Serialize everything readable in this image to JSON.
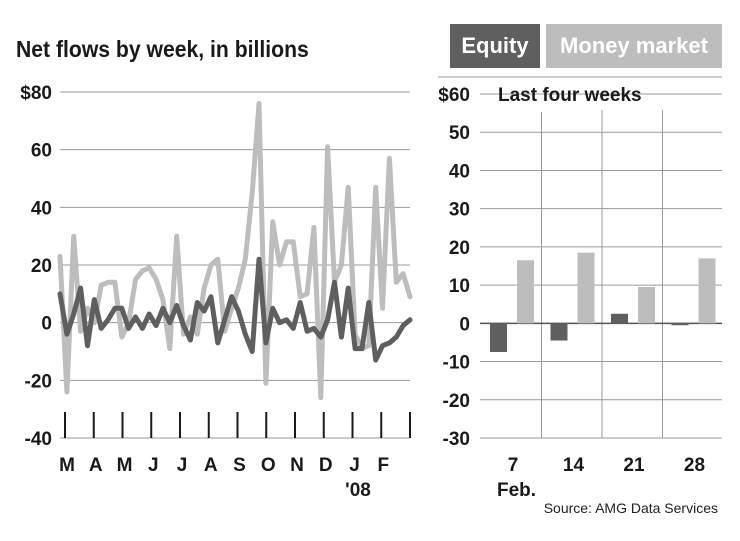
{
  "title": "Net flows by week, in billions",
  "legend": [
    {
      "label": "Equity",
      "color": "#5f5f5f"
    },
    {
      "label": "Money market",
      "color": "#bdbdbd"
    }
  ],
  "source": "Source: AMG Data Services",
  "chart_data": [
    {
      "type": "line",
      "title": "Net flows by week, in billions",
      "ylabel": "",
      "ylim": [
        -40,
        80
      ],
      "yticks": [
        -40,
        -20,
        0,
        20,
        40,
        60,
        80
      ],
      "ytick_labels": [
        "-40",
        "-20",
        "0",
        "20",
        "40",
        "60",
        "$80"
      ],
      "month_labels": [
        "M",
        "A",
        "M",
        "J",
        "J",
        "A",
        "S",
        "O",
        "N",
        "D",
        "J",
        "F"
      ],
      "year_label": "'08",
      "weeks": 52,
      "series": [
        {
          "name": "Money market",
          "color": "#bdbdbd",
          "values": [
            23,
            -24,
            30,
            -3,
            5,
            0,
            13,
            14,
            14,
            -5,
            0,
            15,
            18,
            19,
            15,
            8,
            -9,
            30,
            -4,
            2,
            -4,
            12,
            20,
            22,
            -3,
            5,
            12,
            22,
            45,
            76,
            -21,
            35,
            20,
            28,
            28,
            9,
            10,
            33,
            -26,
            61,
            14,
            20,
            47,
            -4,
            -9,
            -8,
            47,
            5,
            57,
            14,
            17,
            9
          ]
        },
        {
          "name": "Equity",
          "color": "#5f5f5f",
          "values": [
            10,
            -4,
            3,
            12,
            -8,
            8,
            -2,
            1,
            5,
            5,
            -2,
            2,
            -2,
            3,
            -1,
            5,
            0,
            6,
            -1,
            -6,
            7,
            4,
            9,
            -7,
            1,
            9,
            4,
            -4,
            -10,
            22,
            -7,
            5,
            0,
            1,
            -2,
            7,
            -3,
            -2,
            -5,
            1,
            14,
            -5,
            12,
            -9,
            -9,
            7,
            -13,
            -8,
            -7,
            -5,
            -1,
            1
          ]
        }
      ]
    },
    {
      "type": "bar",
      "title": "Last four weeks",
      "ylim": [
        -30,
        60
      ],
      "yticks": [
        -30,
        -20,
        -10,
        0,
        10,
        20,
        30,
        40,
        50,
        60
      ],
      "ytick_labels": [
        "-30",
        "-20",
        "-10",
        "0",
        "10",
        "20",
        "30",
        "40",
        "50",
        "$60"
      ],
      "categories": [
        "7",
        "14",
        "21",
        "28"
      ],
      "xlabel": "Feb.",
      "series": [
        {
          "name": "Equity",
          "color": "#5f5f5f",
          "values": [
            -7.5,
            -4.5,
            2.5,
            -0.5
          ]
        },
        {
          "name": "Money market",
          "color": "#bdbdbd",
          "values": [
            16.5,
            18.5,
            9.5,
            17
          ]
        }
      ]
    }
  ]
}
